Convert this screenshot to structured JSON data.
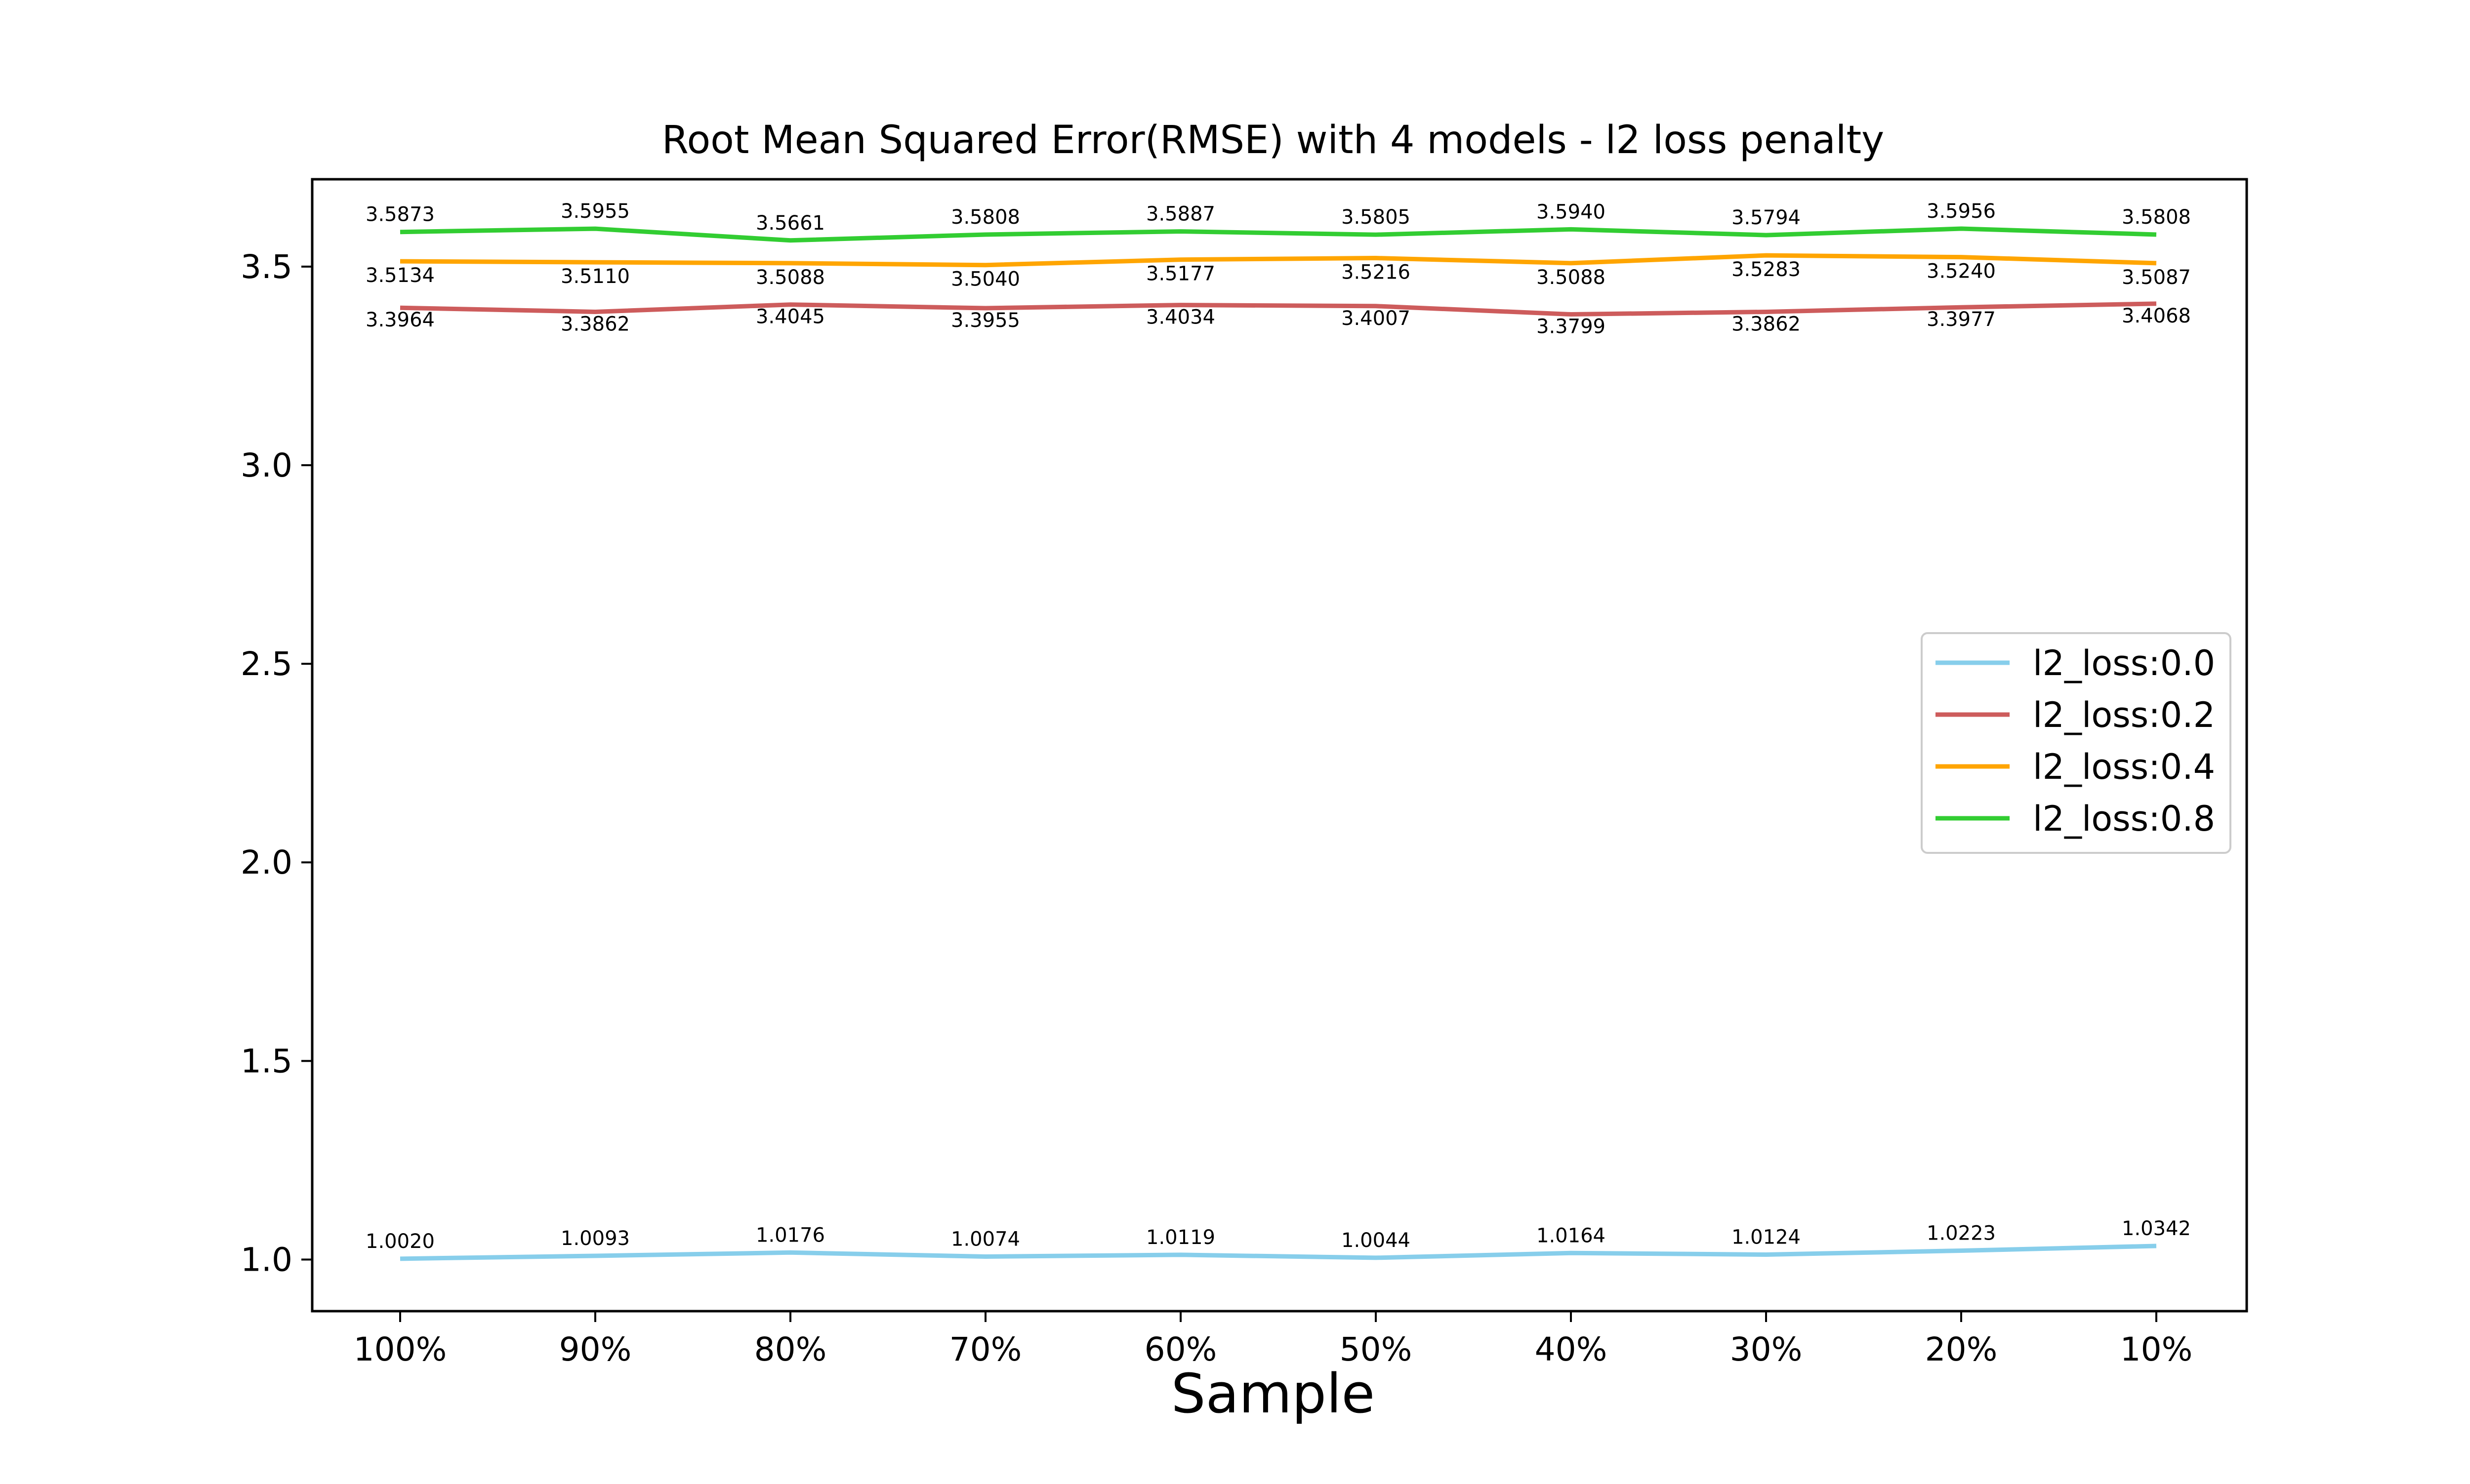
{
  "chart_data": {
    "type": "line",
    "title": "Root Mean Squared Error(RMSE) with 4 models - l2 loss penalty",
    "xlabel": "Sample",
    "ylabel": "",
    "categories": [
      "100%",
      "90%",
      "80%",
      "70%",
      "60%",
      "50%",
      "40%",
      "30%",
      "20%",
      "10%"
    ],
    "ylim": [
      0.87,
      3.72
    ],
    "yticks": [
      1.0,
      1.5,
      2.0,
      2.5,
      3.0,
      3.5
    ],
    "ytick_labels": [
      "1.0",
      "1.5",
      "2.0",
      "2.5",
      "3.0",
      "3.5"
    ],
    "grid": false,
    "legend_position": "center-right",
    "series": [
      {
        "name": "l2_loss:0.0",
        "color": "#87CEEB",
        "values": [
          1.002,
          1.0093,
          1.0176,
          1.0074,
          1.0119,
          1.0044,
          1.0164,
          1.0124,
          1.0223,
          1.0342
        ],
        "labels": [
          "1.0020",
          "1.0093",
          "1.0176",
          "1.0074",
          "1.0119",
          "1.0044",
          "1.0164",
          "1.0124",
          "1.0223",
          "1.0342"
        ]
      },
      {
        "name": "l2_loss:0.2",
        "color": "#CD5C5C",
        "values": [
          3.3964,
          3.3862,
          3.4045,
          3.3955,
          3.4034,
          3.4007,
          3.3799,
          3.3862,
          3.3977,
          3.4068
        ],
        "labels": [
          "3.3964",
          "3.3862",
          "3.4045",
          "3.3955",
          "3.4034",
          "3.4007",
          "3.3799",
          "3.3862",
          "3.3977",
          "3.4068"
        ]
      },
      {
        "name": "l2_loss:0.4",
        "color": "#FFA500",
        "values": [
          3.5134,
          3.511,
          3.5088,
          3.504,
          3.5177,
          3.5216,
          3.5088,
          3.5283,
          3.524,
          3.5087
        ],
        "labels": [
          "3.5134",
          "3.5110",
          "3.5088",
          "3.5040",
          "3.5177",
          "3.5216",
          "3.5088",
          "3.5283",
          "3.5240",
          "3.5087"
        ]
      },
      {
        "name": "l2_loss:0.8",
        "color": "#32CD32",
        "values": [
          3.5873,
          3.5955,
          3.5661,
          3.5808,
          3.5887,
          3.5805,
          3.594,
          3.5794,
          3.5956,
          3.5808
        ],
        "labels": [
          "3.5873",
          "3.5955",
          "3.5661",
          "3.5808",
          "3.5887",
          "3.5805",
          "3.5940",
          "3.5794",
          "3.5956",
          "3.5808"
        ]
      }
    ]
  }
}
